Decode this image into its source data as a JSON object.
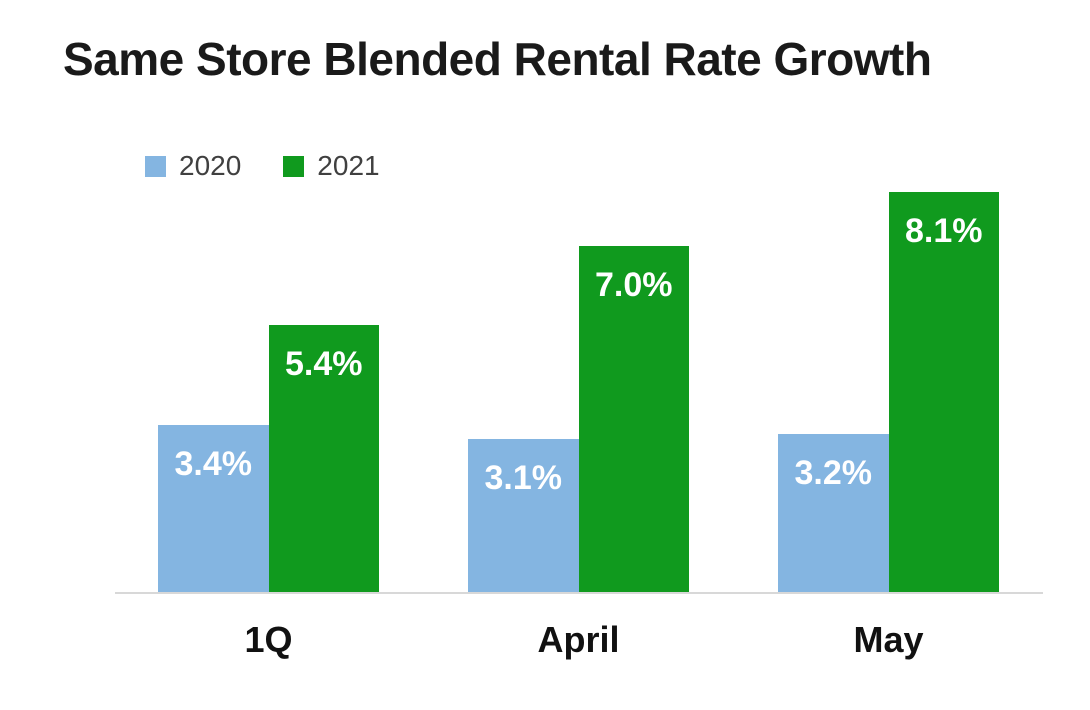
{
  "chart_data": {
    "type": "bar",
    "title": "Same Store Blended Rental Rate Growth",
    "categories": [
      "1Q",
      "April",
      "May"
    ],
    "series": [
      {
        "name": "2020",
        "color": "#84b5e1",
        "values": [
          3.4,
          3.1,
          3.2
        ],
        "labels": [
          "3.4%",
          "3.1%",
          "3.2%"
        ]
      },
      {
        "name": "2021",
        "color": "#109a1e",
        "values": [
          5.4,
          7.0,
          8.1
        ],
        "labels": [
          "5.4%",
          "7.0%",
          "8.1%"
        ]
      }
    ],
    "xlabel": "",
    "ylabel": "",
    "ylim": [
      0,
      9
    ],
    "grid": false,
    "legend_position": "top-left",
    "data_label_color": "#ffffff",
    "axis_line_color": "#d8d8d8"
  }
}
